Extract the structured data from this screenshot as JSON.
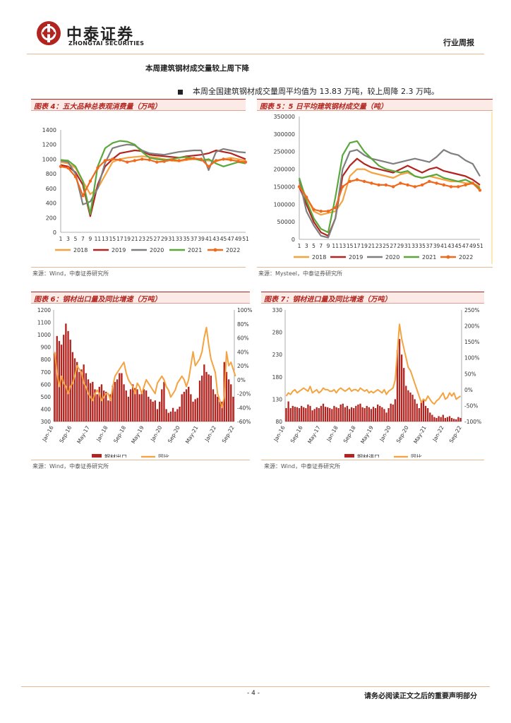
{
  "header": {
    "logo_cn": "中泰证券",
    "logo_en": "ZHONGTAI SECURITIES",
    "doc_type": "行业周报"
  },
  "section": {
    "title": "本周建筑钢材成交量较上周下降",
    "bullet": "本周全国建筑钢材成交量周平均值为 13.83 万吨，较上周降 2.3 万吨。"
  },
  "figures": {
    "fig4": {
      "title": "图表 4：五大品种总表观消费量（万吨）",
      "source": "来源：Wind，中泰证券研究所"
    },
    "fig5": {
      "title": "图表 5：5 日平均建筑钢材成交量（吨）",
      "source": "来源：Mysteel，中泰证券研究所"
    },
    "fig6": {
      "title": "图表 6：钢材出口量及同比增速（万吨）",
      "source": "来源：Wind，中泰证券研究所"
    },
    "fig7": {
      "title": "图表 7：钢材进口量及同比增速（万吨）",
      "source": "来源：Wind，中泰证券研究所"
    }
  },
  "footer": {
    "page": "- 4 -",
    "disclaimer": "请务必阅读正文之后的重要声明部分"
  },
  "colors": {
    "brand": "#b2241f",
    "s2018": "#f4a340",
    "s2019": "#b2241f",
    "s2020": "#7f7f7f",
    "s2021": "#5aa83c",
    "s2022": "#f06a1e"
  },
  "chart_data": [
    {
      "id": "fig4",
      "type": "line",
      "ylim": [
        0,
        1400
      ],
      "yticks": [
        "0",
        "200",
        "400",
        "600",
        "800",
        "1000",
        "1200",
        "1400"
      ],
      "xticks": [
        "1",
        "3",
        "5",
        "7",
        "9",
        "11",
        "13",
        "15",
        "17",
        "19",
        "21",
        "23",
        "25",
        "27",
        "29",
        "31",
        "33",
        "35",
        "37",
        "39",
        "41",
        "43",
        "45",
        "47",
        "49",
        "51"
      ],
      "series": [
        {
          "name": "2018",
          "values": [
            960,
            940,
            880,
            700,
            520,
            600,
            780,
            960,
            1000,
            1020,
            1030,
            1040,
            1030,
            1020,
            1000,
            980,
            970,
            990,
            1000,
            990,
            980,
            970,
            1000,
            1020,
            1000,
            980
          ]
        },
        {
          "name": "2019",
          "values": [
            920,
            900,
            820,
            650,
            220,
            650,
            900,
            1000,
            1080,
            1100,
            1120,
            1110,
            1060,
            1050,
            1040,
            1030,
            1020,
            1040,
            1050,
            1060,
            1080,
            1120,
            1100,
            1080,
            1040,
            1000
          ]
        },
        {
          "name": "2020",
          "values": [
            980,
            960,
            800,
            380,
            420,
            600,
            950,
            1150,
            1180,
            1200,
            1190,
            1120,
            1080,
            1070,
            1060,
            1080,
            1100,
            1110,
            1120,
            1120,
            850,
            1100,
            1140,
            1120,
            1100,
            1090
          ]
        },
        {
          "name": "2021",
          "values": [
            990,
            980,
            900,
            700,
            250,
            900,
            1150,
            1220,
            1250,
            1240,
            1200,
            1100,
            1020,
            1000,
            990,
            1000,
            1020,
            1030,
            1010,
            980,
            1000,
            940,
            900,
            930,
            960,
            940
          ]
        },
        {
          "name": "2022",
          "values": [
            900,
            880,
            760,
            500,
            700,
            880,
            980,
            1000,
            990,
            960,
            980,
            1000,
            990,
            960,
            970,
            990,
            980,
            1000,
            1010,
            1000,
            900,
            980,
            1000,
            990,
            970,
            960
          ]
        }
      ]
    },
    {
      "id": "fig5",
      "type": "line",
      "ylim": [
        0,
        350000
      ],
      "yticks": [
        "0",
        "50000",
        "100000",
        "150000",
        "200000",
        "250000",
        "300000",
        "350000"
      ],
      "xticks": [
        "1",
        "3",
        "5",
        "7",
        "9",
        "11",
        "13",
        "15",
        "17",
        "19",
        "21",
        "23",
        "25",
        "27",
        "29",
        "31",
        "33",
        "35",
        "37",
        "39",
        "41",
        "43",
        "45",
        "47",
        "49",
        "51"
      ],
      "series": [
        {
          "name": "2018",
          "values": [
            160000,
            120000,
            80000,
            70000,
            75000,
            80000,
            110000,
            180000,
            200000,
            200000,
            190000,
            185000,
            180000,
            175000,
            185000,
            190000,
            180000,
            175000,
            180000,
            175000,
            170000,
            165000,
            165000,
            160000,
            160000,
            150000
          ]
        },
        {
          "name": "2019",
          "values": [
            150000,
            100000,
            50000,
            20000,
            10000,
            60000,
            180000,
            210000,
            230000,
            215000,
            205000,
            200000,
            195000,
            190000,
            200000,
            210000,
            200000,
            190000,
            200000,
            205000,
            195000,
            190000,
            185000,
            180000,
            170000,
            155000
          ]
        },
        {
          "name": "2020",
          "values": [
            170000,
            80000,
            40000,
            10000,
            5000,
            60000,
            200000,
            250000,
            255000,
            240000,
            230000,
            225000,
            220000,
            215000,
            220000,
            225000,
            230000,
            225000,
            220000,
            235000,
            255000,
            245000,
            240000,
            225000,
            215000,
            180000
          ]
        },
        {
          "name": "2021",
          "values": [
            175000,
            110000,
            60000,
            30000,
            20000,
            120000,
            240000,
            275000,
            280000,
            250000,
            230000,
            210000,
            200000,
            195000,
            190000,
            195000,
            180000,
            175000,
            180000,
            185000,
            175000,
            170000,
            165000,
            170000,
            160000,
            145000
          ]
        },
        {
          "name": "2022",
          "values": [
            150000,
            120000,
            85000,
            80000,
            80000,
            90000,
            150000,
            165000,
            170000,
            165000,
            160000,
            155000,
            155000,
            150000,
            160000,
            155000,
            150000,
            155000,
            165000,
            160000,
            155000,
            150000,
            150000,
            155000,
            160000,
            140000
          ]
        }
      ]
    },
    {
      "id": "fig6",
      "type": "bar",
      "left_ylim": [
        300,
        1200
      ],
      "left_yticks": [
        "300",
        "400",
        "500",
        "600",
        "700",
        "800",
        "900",
        "1000",
        "1100",
        "1200"
      ],
      "right_ylim": [
        -60,
        100
      ],
      "right_yticks": [
        "-60%",
        "-40%",
        "-20%",
        "0%",
        "20%",
        "40%",
        "60%",
        "80%",
        "100%"
      ],
      "xticks": [
        "Jan-16",
        "Sep-16",
        "May-17",
        "Jan-18",
        "Sep-18",
        "May-19",
        "Jan-20",
        "Sep-20",
        "May-21",
        "Jan-22",
        "Sep-22"
      ],
      "bar_name": "钢材出口",
      "line_name": "同比",
      "bars": [
        850,
        990,
        950,
        920,
        1000,
        1090,
        1030,
        960,
        860,
        810,
        780,
        700,
        720,
        760,
        690,
        640,
        610,
        620,
        560,
        520,
        580,
        600,
        550,
        540,
        470,
        520,
        590,
        620,
        640,
        690,
        690,
        600,
        550,
        500,
        560,
        600,
        570,
        560,
        520,
        530,
        560,
        550,
        500,
        480,
        460,
        470,
        400,
        460,
        560,
        620,
        400,
        370,
        380,
        410,
        380,
        400,
        420,
        520,
        540,
        560,
        580,
        520,
        460,
        480,
        490,
        630,
        670,
        760,
        700,
        680,
        670,
        560,
        520,
        500,
        460,
        460,
        780,
        700,
        640,
        600,
        500
      ],
      "line": [
        40,
        10,
        -10,
        5,
        -5,
        -10,
        -20,
        -10,
        -5,
        5,
        20,
        15,
        10,
        -5,
        -10,
        -20,
        -25,
        -30,
        -20,
        -15,
        -20,
        -30,
        -25,
        -20,
        -20,
        -30,
        -10,
        5,
        10,
        15,
        20,
        25,
        10,
        0,
        -5,
        -10,
        -20,
        -5,
        -10,
        -20,
        -10,
        0,
        -5,
        -10,
        -15,
        -20,
        -5,
        0,
        5,
        0,
        -10,
        -15,
        -25,
        -20,
        -15,
        -5,
        0,
        5,
        0,
        -10,
        0,
        20,
        40,
        20,
        25,
        30,
        40,
        60,
        75,
        50,
        30,
        20,
        10,
        -20,
        -30,
        -40,
        -25,
        40,
        20,
        25,
        15,
        5
      ]
    },
    {
      "id": "fig7",
      "type": "bar",
      "left_ylim": [
        80,
        330
      ],
      "left_yticks": [
        "80",
        "130",
        "180",
        "230",
        "280",
        "330"
      ],
      "right_ylim": [
        -100,
        250
      ],
      "right_yticks": [
        "-100%",
        "-50%",
        "0%",
        "50%",
        "100%",
        "150%",
        "200%",
        "250%"
      ],
      "xticks": [
        "Jan-16",
        "Sep-16",
        "May-17",
        "Jan-18",
        "Sep-18",
        "May-19",
        "Jan-20",
        "Sep-20",
        "May-21",
        "Jan-22",
        "Sep-22"
      ],
      "bar_name": "钢材进口",
      "line_name": "同比",
      "bars": [
        110,
        125,
        110,
        115,
        113,
        112,
        110,
        115,
        112,
        110,
        118,
        115,
        105,
        108,
        112,
        110,
        115,
        120,
        113,
        112,
        110,
        108,
        115,
        112,
        110,
        118,
        120,
        112,
        115,
        108,
        112,
        110,
        115,
        118,
        120,
        112,
        110,
        115,
        112,
        108,
        113,
        110,
        118,
        115,
        112,
        108,
        100,
        110,
        120,
        118,
        130,
        240,
        265,
        230,
        200,
        160,
        150,
        145,
        140,
        130,
        120,
        110,
        125,
        130,
        115,
        110,
        100,
        95,
        90,
        88,
        92,
        90,
        95,
        88,
        90,
        92,
        88,
        86,
        85,
        90,
        88
      ],
      "line": [
        -20,
        -10,
        -15,
        -5,
        0,
        -10,
        -5,
        0,
        5,
        0,
        -5,
        10,
        -10,
        -5,
        0,
        -10,
        -5,
        5,
        0,
        0,
        -5,
        -5,
        0,
        -10,
        0,
        5,
        0,
        -5,
        0,
        5,
        -5,
        0,
        0,
        -5,
        5,
        0,
        -5,
        0,
        -10,
        -5,
        -10,
        -5,
        0,
        -5,
        -10,
        0,
        -15,
        -5,
        0,
        5,
        30,
        120,
        205,
        160,
        130,
        100,
        70,
        60,
        40,
        20,
        0,
        -20,
        -40,
        -30,
        -35,
        -20,
        -30,
        -40,
        -45,
        -35,
        -30,
        -20,
        -10,
        -30,
        -25,
        -10,
        -20,
        -10,
        -30,
        -25,
        -20
      ]
    }
  ]
}
